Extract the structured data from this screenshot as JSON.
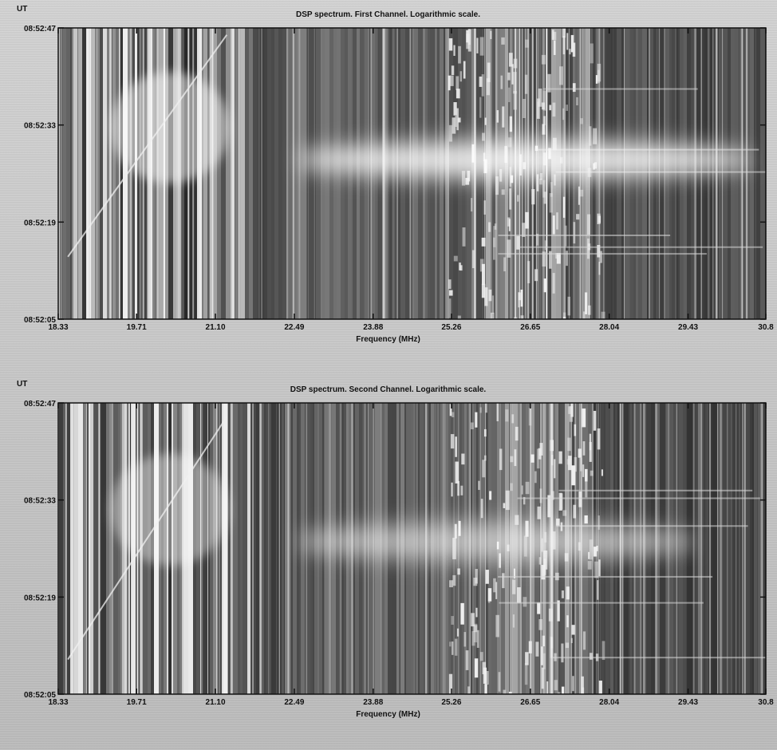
{
  "chart_data": [
    {
      "type": "heatmap",
      "title": "DSP spectrum. First Channel. Logarithmic scale.",
      "xlabel": "Frequency (MHz)",
      "ylabel": "UT",
      "x_ticks": [
        "18.33",
        "19.71",
        "21.10",
        "22.49",
        "23.88",
        "25.26",
        "26.65",
        "28.04",
        "29.43",
        "30.8"
      ],
      "y_ticks": [
        "08:52:47",
        "08:52:33",
        "08:52:19",
        "08:52:05"
      ],
      "xlim": [
        18.33,
        30.8
      ],
      "ylim": [
        "08:52:05",
        "08:52:47"
      ],
      "features": {
        "burst": {
          "f_start": 22.49,
          "f_end": 30.6,
          "t_center": "08:52:28",
          "strength": 1.0
        },
        "drift_line": {
          "f_start": 18.5,
          "t_start": "08:52:14",
          "f_end": 21.3,
          "t_end": "08:52:46"
        }
      }
    },
    {
      "type": "heatmap",
      "title": "DSP spectrum. Second Channel. Logarithmic scale.",
      "xlabel": "Frequency (MHz)",
      "ylabel": "UT",
      "x_ticks": [
        "18.33",
        "19.71",
        "21.10",
        "22.49",
        "23.88",
        "25.26",
        "26.65",
        "28.04",
        "29.43",
        "30.8"
      ],
      "y_ticks": [
        "08:52:47",
        "08:52:33",
        "08:52:19",
        "08:52:05"
      ],
      "xlim": [
        18.33,
        30.8
      ],
      "ylim": [
        "08:52:05",
        "08:52:47"
      ],
      "features": {
        "burst": {
          "f_start": 22.49,
          "f_end": 29.6,
          "t_center": "08:52:27",
          "strength": 0.7
        },
        "drift_line": {
          "f_start": 18.5,
          "t_start": "08:52:10",
          "f_end": 21.3,
          "t_end": "08:52:45"
        }
      }
    }
  ],
  "colors": {
    "background": "#c8c8c8",
    "spectrum_dark": "#1a1a1a",
    "spectrum_light": "#f4f4f4"
  }
}
